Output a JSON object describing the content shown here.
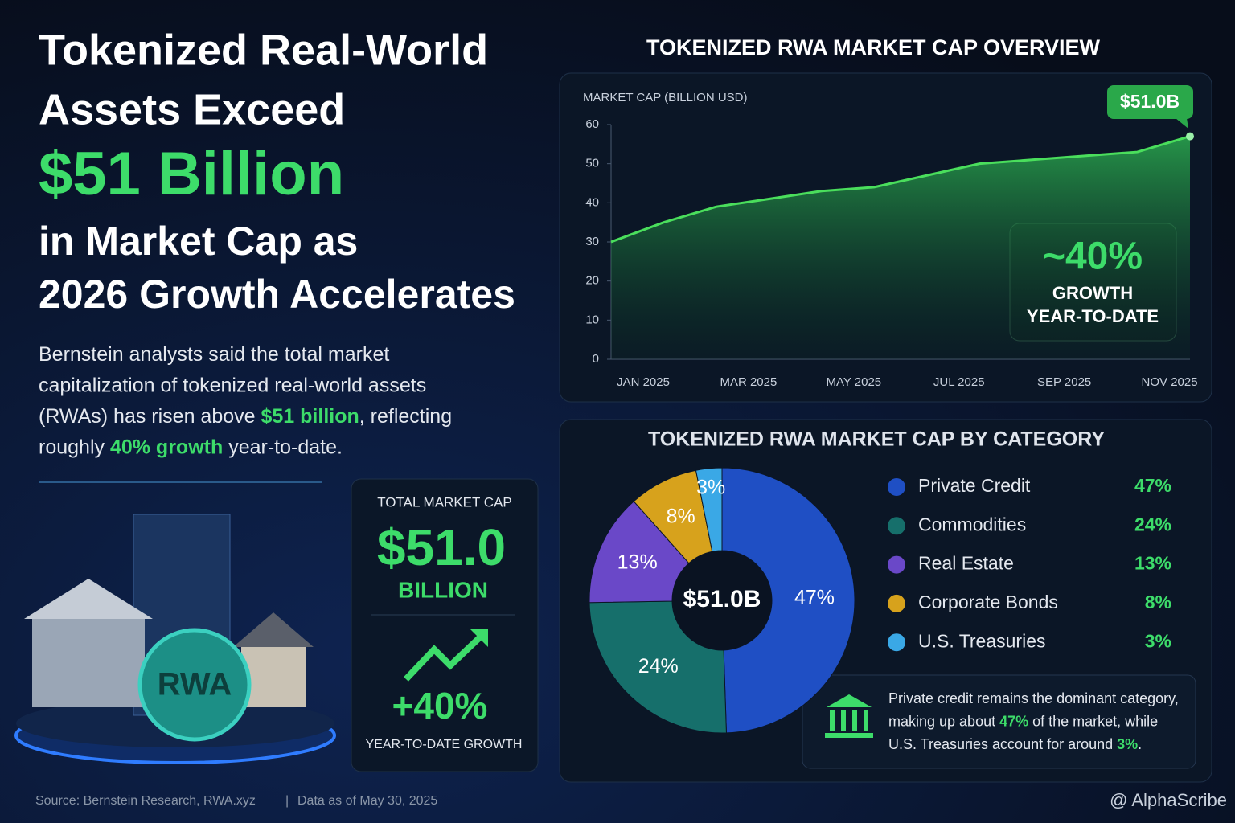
{
  "header": {
    "title_lines": [
      "Tokenized Real-World",
      "Assets Exceed",
      "$51 Billion",
      "in Market Cap as",
      "2026 Growth Accelerates"
    ]
  },
  "summary": {
    "highlight_color": "#3ddc6a",
    "lines": [
      [
        {
          "text": "Bernstein analysts said the total market"
        }
      ],
      [
        {
          "text": "capitalization of tokenized real-world assets"
        }
      ],
      [
        {
          "text": "(RWAs) has risen above "
        },
        {
          "text": "$51 billion",
          "highlight": true
        },
        {
          "text": ", reflecting"
        }
      ],
      [
        {
          "text": "roughly "
        },
        {
          "text": "40% growth",
          "highlight": true
        },
        {
          "text": " year-to-date."
        }
      ]
    ]
  },
  "illustration": {
    "coin_label": "RWA"
  },
  "stats": {
    "label": "TOTAL MARKET CAP",
    "value": "$51.0",
    "unit": "BILLION",
    "growth": "+40%",
    "growth_label": "YEAR-TO-DATE GROWTH"
  },
  "chart_data": [
    {
      "type": "line",
      "title": "TOKENIZED RWA MARKET CAP OVERVIEW",
      "y_label": "MARKET CAP (BILLION USD)",
      "categories": [
        "JAN 2025",
        null,
        "MAR 2025",
        null,
        "MAY 2025",
        null,
        "JUL 2025",
        null,
        "SEP 2025",
        null,
        "NOV 2025",
        null
      ],
      "series": [
        {
          "name": "Market cap",
          "color": "#4ade5c",
          "values": [
            30,
            35,
            39,
            41,
            43,
            44,
            47,
            50,
            51,
            52,
            53,
            57
          ]
        }
      ],
      "ylim": [
        0,
        60
      ],
      "yticks": [
        0,
        10,
        20,
        30,
        40,
        50,
        60
      ],
      "annotation": "$51.0B",
      "callout": [
        "~40%",
        "GROWTH",
        "YEAR-TO-DATE"
      ]
    },
    {
      "type": "pie",
      "title": "TOKENIZED RWA MARKET CAP BY CATEGORY",
      "center_label": "$51.0B",
      "categories": [
        "Private Credit",
        "Commodities",
        "Real Estate",
        "Corporate Bonds",
        "U.S. Treasuries"
      ],
      "values": [
        47,
        24,
        13,
        8,
        3
      ],
      "value_labels": [
        "47%",
        "24%",
        "13%",
        "8%",
        "3%"
      ],
      "colors": [
        "#1f4fc4",
        "#166f6b",
        "#6a48c8",
        "#d7a21c",
        "#3aa8e6"
      ],
      "note_lines": [
        [
          {
            "text": "Private credit remains the dominant category,"
          }
        ],
        [
          {
            "text": "making up about "
          },
          {
            "text": "47%",
            "highlight": true
          },
          {
            "text": " of the market, while"
          }
        ],
        [
          {
            "text": "U.S. Treasuries account for around "
          },
          {
            "text": "3%",
            "highlight": true
          },
          {
            "text": "."
          }
        ]
      ]
    }
  ],
  "footer": {
    "source": "Source: Bernstein Research, RWA.xyz",
    "separator": "|",
    "date": "Data as of May 30, 2025",
    "brand": "@ AlphaScribe"
  }
}
